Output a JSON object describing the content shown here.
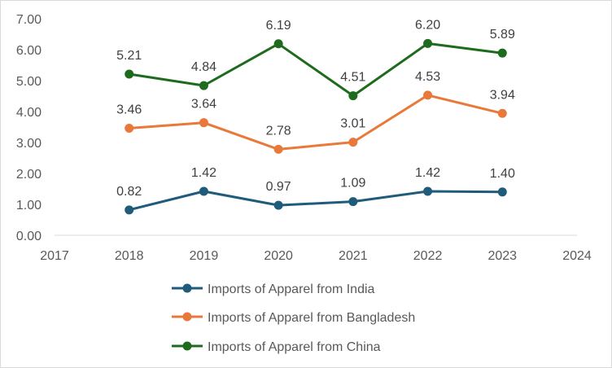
{
  "chart_data": {
    "type": "line",
    "x": [
      2018,
      2019,
      2020,
      2021,
      2022,
      2023
    ],
    "xlim": [
      2017,
      2024
    ],
    "xticks": [
      "2017",
      "2018",
      "2019",
      "2020",
      "2021",
      "2022",
      "2023",
      "2024"
    ],
    "ylim": [
      0,
      7
    ],
    "yticks": [
      "0.00",
      "1.00",
      "2.00",
      "3.00",
      "4.00",
      "5.00",
      "6.00",
      "7.00"
    ],
    "grid": false,
    "legend_position": "bottom",
    "series": [
      {
        "name": "Imports of Apparel from India",
        "color": "#1f5b7a",
        "values": [
          0.82,
          1.42,
          0.97,
          1.09,
          1.42,
          1.4
        ],
        "labels": [
          "0.82",
          "1.42",
          "0.97",
          "1.09",
          "1.42",
          "1.40"
        ]
      },
      {
        "name": "Imports of Apparel from Bangladesh",
        "color": "#e8793a",
        "values": [
          3.46,
          3.64,
          2.78,
          3.01,
          4.53,
          3.94
        ],
        "labels": [
          "3.46",
          "3.64",
          "2.78",
          "3.01",
          "4.53",
          "3.94"
        ]
      },
      {
        "name": "Imports of Apparel from China",
        "color": "#1e6b1e",
        "values": [
          5.21,
          4.84,
          6.19,
          4.51,
          6.2,
          5.89
        ],
        "labels": [
          "5.21",
          "4.84",
          "6.19",
          "4.51",
          "6.20",
          "5.89"
        ]
      }
    ]
  }
}
